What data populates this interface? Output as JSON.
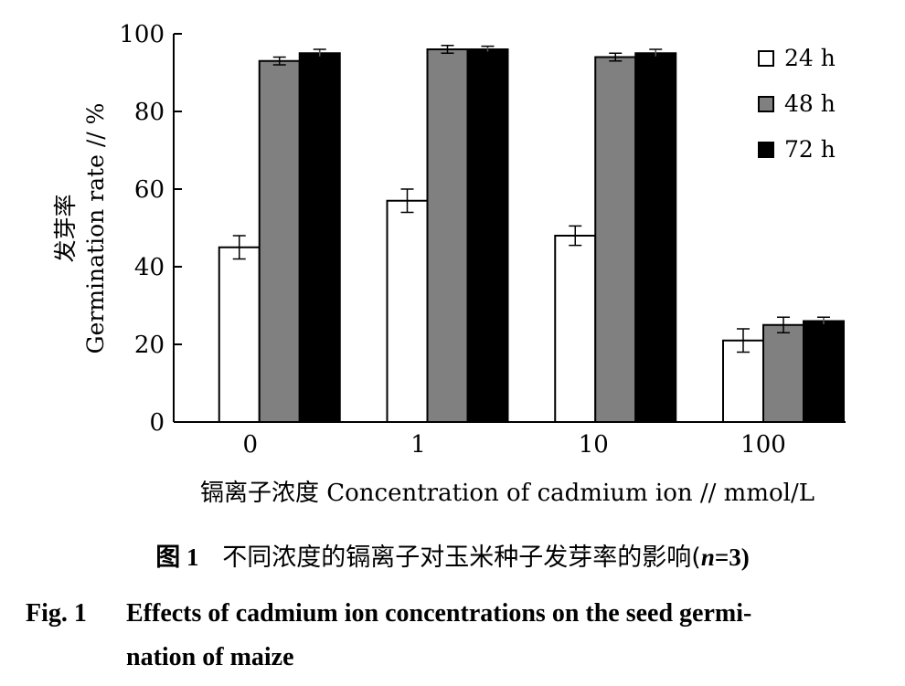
{
  "chart_data": {
    "type": "bar",
    "categories": [
      "0",
      "1",
      "10",
      "100"
    ],
    "series": [
      {
        "name": "24 h",
        "values": [
          45,
          57,
          48,
          21
        ],
        "errors": [
          3,
          3,
          2.5,
          3
        ],
        "color": "#ffffff"
      },
      {
        "name": "48 h",
        "values": [
          93,
          96,
          94,
          25
        ],
        "errors": [
          1,
          1,
          1,
          2
        ],
        "color": "#808080"
      },
      {
        "name": "72 h",
        "values": [
          95,
          96,
          95,
          26
        ],
        "errors": [
          1,
          0.8,
          1,
          1
        ],
        "color": "#000000"
      }
    ],
    "ylim": [
      0,
      100
    ],
    "yticks": [
      "0",
      "20",
      "40",
      "60",
      "80",
      "100"
    ],
    "ylabel_cn": "发芽率",
    "ylabel_en": "Germination rate // %",
    "xlabel": "镉离子浓度 Concentration of cadmium ion // mmol/L",
    "legend_position": "top-right",
    "grid": false
  },
  "caption": {
    "cn_label": "图 1",
    "cn_text": "不同浓度的镉离子对玉米种子发芽率的影响(",
    "cn_n": "n",
    "cn_eq": "=3)",
    "en_label": "Fig. 1",
    "en_line1": "Effects of cadmium ion concentrations on the seed germi-",
    "en_line2": "nation of maize"
  }
}
